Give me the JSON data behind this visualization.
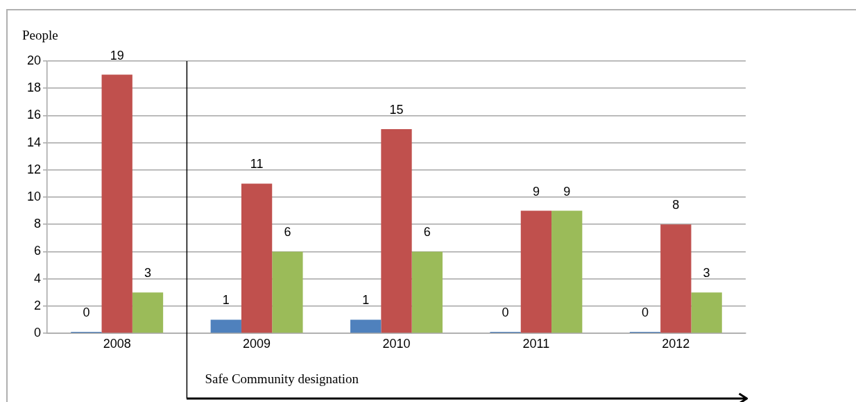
{
  "chart_data": {
    "type": "bar",
    "ylabel": "People",
    "categories": [
      "2008",
      "2009",
      "2010",
      "2011",
      "2012"
    ],
    "series": [
      {
        "color": "#4f81bd",
        "values": [
          0,
          1,
          1,
          0,
          0
        ]
      },
      {
        "color": "#c0504d",
        "values": [
          19,
          11,
          15,
          9,
          8
        ]
      },
      {
        "color": "#9bbb59",
        "values": [
          3,
          6,
          6,
          9,
          3
        ]
      }
    ],
    "ylim": [
      0,
      20
    ],
    "yticks": [
      0,
      2,
      4,
      6,
      8,
      10,
      12,
      14,
      16,
      18,
      20
    ],
    "grid": "y",
    "data_labels": true,
    "ref_lines": [
      {
        "axis": "x",
        "value": "2009",
        "label": "Safe Community designation"
      }
    ]
  }
}
